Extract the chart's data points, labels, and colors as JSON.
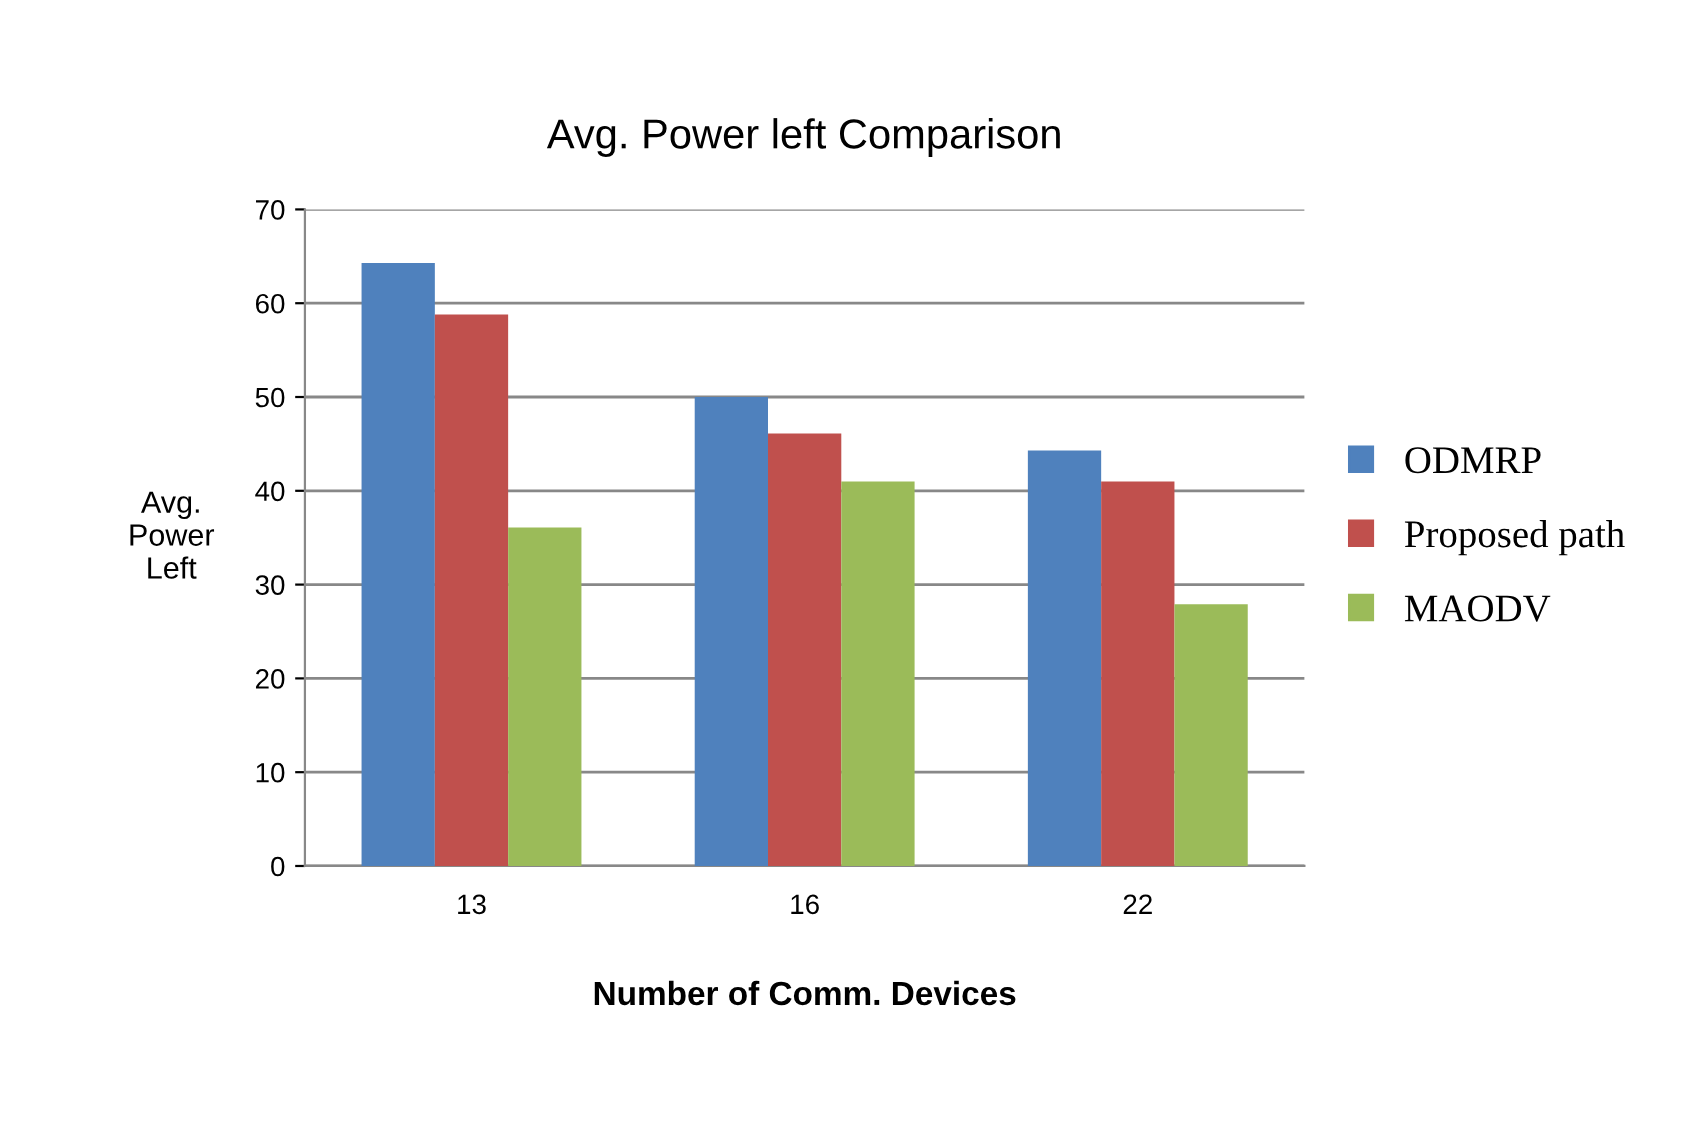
{
  "chart_data": {
    "type": "bar",
    "title": "Avg. Power left Comparison",
    "xlabel": "Number of Comm. Devices",
    "ylabel": "Avg.\nPower\nLeft",
    "categories": [
      "13",
      "16",
      "22"
    ],
    "series": [
      {
        "name": "ODMRP",
        "color": "#4f81bd",
        "values": [
          64.3,
          50,
          44.3
        ]
      },
      {
        "name": "Proposed path",
        "color": "#c0504d",
        "values": [
          58.8,
          46.1,
          41
        ]
      },
      {
        "name": "MAODV",
        "color": "#9bbb59",
        "values": [
          36.1,
          41,
          27.9
        ]
      }
    ],
    "ylim": [
      0,
      70
    ],
    "yticks": [
      0,
      10,
      20,
      30,
      40,
      50,
      60,
      70
    ],
    "grid": "y",
    "legend": "right"
  }
}
